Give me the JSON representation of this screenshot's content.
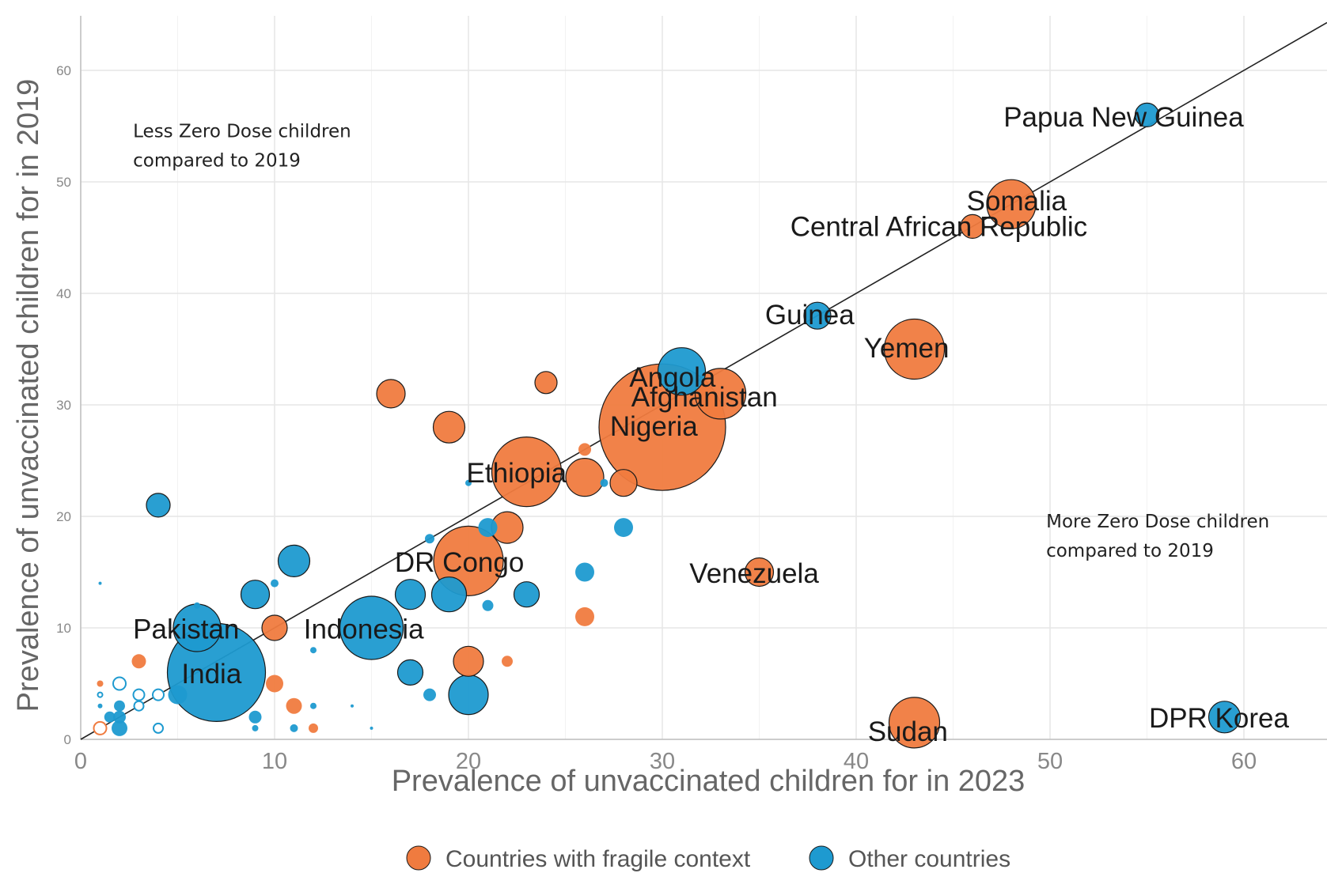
{
  "chart_data": {
    "type": "scatter",
    "xlabel": "Prevalence of unvaccinated children for  in 2023",
    "ylabel": "Prevalence of unvaccinated children for  in 2019",
    "xlim": [
      0,
      64
    ],
    "ylim": [
      0,
      65
    ],
    "x_ticks": [
      0,
      10,
      20,
      30,
      40,
      50,
      60
    ],
    "y_ticks": [
      0,
      10,
      20,
      30,
      40,
      50,
      60
    ],
    "grid": true,
    "reference_line": "y = x",
    "legend_position": "bottom",
    "annotations": [
      {
        "text_lines": [
          "Less Zero Dose children",
          "compared to 2019"
        ],
        "anchor": [
          2.7,
          54
        ]
      },
      {
        "text_lines": [
          "More Zero Dose children",
          "compared to 2019"
        ],
        "anchor": [
          49.8,
          19
        ]
      }
    ],
    "colors": {
      "fragile": "#f07b3f",
      "other": "#1e9ad0",
      "grid": "#e6e6e6",
      "diagonal": "#222222"
    },
    "series": [
      {
        "name": "Countries with fragile context",
        "key": "fragile",
        "points": [
          {
            "label": "Nigeria",
            "x": 30,
            "y": 28,
            "size": 80
          },
          {
            "label": "Ethiopia",
            "x": 23,
            "y": 24,
            "size": 44
          },
          {
            "label": "DR Congo",
            "x": 20,
            "y": 16,
            "size": 44
          },
          {
            "label": "Afghanistan",
            "x": 33,
            "y": 31,
            "size": 32
          },
          {
            "label": "Yemen",
            "x": 43,
            "y": 35,
            "size": 38
          },
          {
            "label": "Somalia",
            "x": 48,
            "y": 48,
            "size": 31
          },
          {
            "label": "Central African Republic",
            "x": 46,
            "y": 46,
            "size": 15
          },
          {
            "label": "Sudan",
            "x": 43,
            "y": 1.5,
            "size": 32
          },
          {
            "label": "Venezuela",
            "x": 35,
            "y": 15,
            "size": 18
          },
          {
            "label": "",
            "x": 16,
            "y": 31,
            "size": 18
          },
          {
            "label": "",
            "x": 24,
            "y": 32,
            "size": 14
          },
          {
            "label": "",
            "x": 19,
            "y": 28,
            "size": 20
          },
          {
            "label": "",
            "x": 26,
            "y": 23.5,
            "size": 24
          },
          {
            "label": "",
            "x": 28,
            "y": 23,
            "size": 17
          },
          {
            "label": "",
            "x": 22,
            "y": 19,
            "size": 20
          },
          {
            "label": "",
            "x": 26,
            "y": 26,
            "size": 8
          },
          {
            "label": "",
            "x": 26,
            "y": 11,
            "size": 12
          },
          {
            "label": "",
            "x": 20,
            "y": 7,
            "size": 19
          },
          {
            "label": "",
            "x": 22,
            "y": 7,
            "size": 7
          },
          {
            "label": "",
            "x": 10,
            "y": 10,
            "size": 16
          },
          {
            "label": "",
            "x": 10,
            "y": 5,
            "size": 11
          },
          {
            "label": "",
            "x": 11,
            "y": 3,
            "size": 10
          },
          {
            "label": "",
            "x": 12,
            "y": 1,
            "size": 6
          },
          {
            "label": "",
            "x": 3,
            "y": 7,
            "size": 9
          },
          {
            "label": "",
            "x": 1,
            "y": 5,
            "size": 4
          },
          {
            "label": "",
            "x": 1,
            "y": 1,
            "size": 8,
            "hollow": true
          }
        ]
      },
      {
        "name": "Other countries",
        "key": "other",
        "points": [
          {
            "label": "India",
            "x": 7,
            "y": 6,
            "size": 62
          },
          {
            "label": "Indonesia",
            "x": 15,
            "y": 10,
            "size": 40
          },
          {
            "label": "Pakistan",
            "x": 6,
            "y": 10,
            "size": 30
          },
          {
            "label": "Angola",
            "x": 31,
            "y": 33,
            "size": 30
          },
          {
            "label": "Guinea",
            "x": 38,
            "y": 38,
            "size": 17
          },
          {
            "label": "Papua New Guinea",
            "x": 55,
            "y": 56,
            "size": 15
          },
          {
            "label": "DPR Korea",
            "x": 59,
            "y": 2,
            "size": 20
          },
          {
            "label": "",
            "x": 11,
            "y": 16,
            "size": 20
          },
          {
            "label": "",
            "x": 9,
            "y": 13,
            "size": 18
          },
          {
            "label": "",
            "x": 4,
            "y": 21,
            "size": 15
          },
          {
            "label": "",
            "x": 17,
            "y": 13,
            "size": 19
          },
          {
            "label": "",
            "x": 19,
            "y": 13,
            "size": 22
          },
          {
            "label": "",
            "x": 23,
            "y": 13,
            "size": 16
          },
          {
            "label": "",
            "x": 26,
            "y": 15,
            "size": 12
          },
          {
            "label": "",
            "x": 28,
            "y": 19,
            "size": 12
          },
          {
            "label": "",
            "x": 21,
            "y": 19,
            "size": 12
          },
          {
            "label": "",
            "x": 20,
            "y": 4,
            "size": 25
          },
          {
            "label": "",
            "x": 17,
            "y": 6,
            "size": 16
          },
          {
            "label": "",
            "x": 18,
            "y": 4,
            "size": 8
          },
          {
            "label": "",
            "x": 21,
            "y": 12,
            "size": 7
          },
          {
            "label": "",
            "x": 27,
            "y": 23,
            "size": 5
          },
          {
            "label": "",
            "x": 20,
            "y": 23,
            "size": 4
          },
          {
            "label": "",
            "x": 18,
            "y": 18,
            "size": 6
          },
          {
            "label": "",
            "x": 9,
            "y": 2,
            "size": 8
          },
          {
            "label": "",
            "x": 10,
            "y": 14,
            "size": 5
          },
          {
            "label": "",
            "x": 6,
            "y": 12,
            "size": 4
          },
          {
            "label": "",
            "x": 12,
            "y": 3,
            "size": 4
          },
          {
            "label": "",
            "x": 12,
            "y": 8,
            "size": 4
          },
          {
            "label": "",
            "x": 11,
            "y": 1,
            "size": 5
          },
          {
            "label": "",
            "x": 5,
            "y": 4,
            "size": 12
          },
          {
            "label": "",
            "x": 4,
            "y": 4,
            "size": 7,
            "hollow": true
          },
          {
            "label": "",
            "x": 4,
            "y": 1,
            "size": 6,
            "hollow": true
          },
          {
            "label": "",
            "x": 3,
            "y": 4,
            "size": 7,
            "hollow": true
          },
          {
            "label": "",
            "x": 3,
            "y": 3,
            "size": 6,
            "hollow": true
          },
          {
            "label": "",
            "x": 2,
            "y": 5,
            "size": 8,
            "hollow": true
          },
          {
            "label": "",
            "x": 2,
            "y": 3,
            "size": 7
          },
          {
            "label": "",
            "x": 2,
            "y": 1,
            "size": 10
          },
          {
            "label": "",
            "x": 2,
            "y": 2,
            "size": 8
          },
          {
            "label": "",
            "x": 1.5,
            "y": 2,
            "size": 7
          },
          {
            "label": "",
            "x": 1,
            "y": 4,
            "size": 3,
            "hollow": true
          },
          {
            "label": "",
            "x": 1,
            "y": 3,
            "size": 3
          },
          {
            "label": "",
            "x": 1,
            "y": 14,
            "size": 2
          },
          {
            "label": "",
            "x": 9,
            "y": 1,
            "size": 4
          },
          {
            "label": "",
            "x": 15,
            "y": 1,
            "size": 2
          },
          {
            "label": "",
            "x": 14,
            "y": 3,
            "size": 2
          }
        ]
      }
    ],
    "labels": [
      {
        "text": "Papua New Guinea",
        "x": 47.6,
        "y": 55.8,
        "anchor": "start"
      },
      {
        "text": "Somalia",
        "x": 45.7,
        "y": 48.3,
        "anchor": "start"
      },
      {
        "text": "Central African Republic",
        "x": 36.6,
        "y": 46,
        "anchor": "start"
      },
      {
        "text": "Guinea",
        "x": 35.3,
        "y": 38.1,
        "anchor": "start"
      },
      {
        "text": "Yemen",
        "x": 40.4,
        "y": 35.1,
        "anchor": "start"
      },
      {
        "text": "Angola",
        "x": 28.3,
        "y": 32.5,
        "anchor": "start"
      },
      {
        "text": "Afghanistan",
        "x": 28.4,
        "y": 30.7,
        "anchor": "start"
      },
      {
        "text": "Nigeria",
        "x": 27.3,
        "y": 28.1,
        "anchor": "start"
      },
      {
        "text": "Ethiopia",
        "x": 19.9,
        "y": 23.9,
        "anchor": "start"
      },
      {
        "text": "DR Congo",
        "x": 16.2,
        "y": 15.9,
        "anchor": "start"
      },
      {
        "text": "Venezuela",
        "x": 31.4,
        "y": 14.9,
        "anchor": "start"
      },
      {
        "text": "Pakistan",
        "x": 2.7,
        "y": 9.9,
        "anchor": "start"
      },
      {
        "text": "Indonesia",
        "x": 11.5,
        "y": 9.9,
        "anchor": "start"
      },
      {
        "text": "India",
        "x": 5.2,
        "y": 5.9,
        "anchor": "start"
      },
      {
        "text": "Sudan",
        "x": 40.6,
        "y": 0.7,
        "anchor": "start"
      },
      {
        "text": "DPR Korea",
        "x": 55.1,
        "y": 1.9,
        "anchor": "start"
      }
    ]
  }
}
